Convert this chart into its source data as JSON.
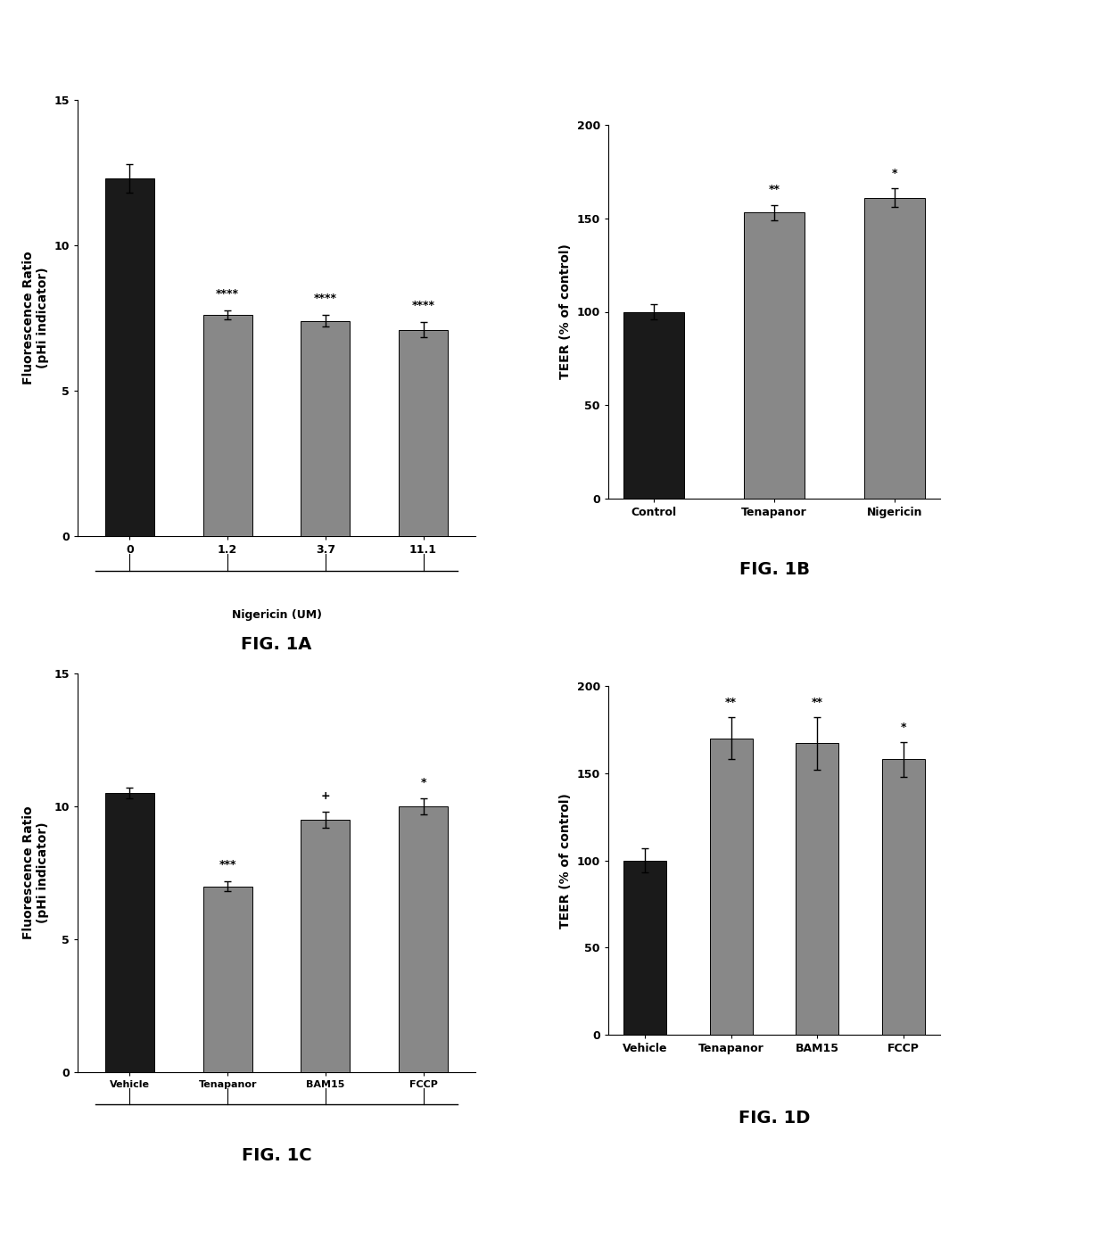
{
  "fig1a": {
    "categories": [
      "0",
      "1.2",
      "3.7",
      "11.1"
    ],
    "values": [
      12.3,
      7.6,
      7.4,
      7.1
    ],
    "errors": [
      0.5,
      0.15,
      0.2,
      0.25
    ],
    "colors": [
      "dark",
      "gray",
      "gray",
      "gray"
    ],
    "ylabel": "Fluorescence Ratio\n(pHi indicator)",
    "xlabel_bracket": "Nigericin (UM)",
    "ylim": [
      0,
      15
    ],
    "yticks": [
      0,
      5,
      10,
      15
    ],
    "significance": [
      "",
      "****",
      "****",
      "****"
    ],
    "label": "FIG. 1A"
  },
  "fig1b": {
    "categories": [
      "Control",
      "Tenapanor",
      "Nigericin"
    ],
    "values": [
      100,
      153,
      161
    ],
    "errors": [
      4,
      4,
      5
    ],
    "colors": [
      "dark",
      "gray",
      "gray"
    ],
    "ylabel": "TEER (% of control)",
    "ylim": [
      0,
      200
    ],
    "yticks": [
      0,
      50,
      100,
      150,
      200
    ],
    "significance": [
      "",
      "**",
      "*"
    ],
    "label": "FIG. 1B"
  },
  "fig1c": {
    "categories": [
      "Vehicle",
      "Tenapanor",
      "BAM15",
      "FCCP"
    ],
    "values": [
      10.5,
      7.0,
      9.5,
      10.0
    ],
    "errors": [
      0.2,
      0.2,
      0.3,
      0.3
    ],
    "colors": [
      "dark",
      "gray",
      "gray",
      "gray"
    ],
    "ylabel": "Fluorescence Ratio\n(pHi indicator)",
    "xlabel_bracket": "Vehicle  Tenapanor  BAM15    FCCP",
    "ylim": [
      0,
      15
    ],
    "yticks": [
      0,
      5,
      10,
      15
    ],
    "significance": [
      "",
      "***",
      "+",
      "*"
    ],
    "label": "FIG. 1C"
  },
  "fig1d": {
    "categories": [
      "Vehicle",
      "Tenapanor",
      "BAM15",
      "FCCP"
    ],
    "values": [
      100,
      170,
      167,
      158
    ],
    "errors": [
      7,
      12,
      15,
      10
    ],
    "colors": [
      "dark",
      "gray",
      "gray",
      "gray"
    ],
    "ylabel": "TEER (% of control)",
    "ylim": [
      0,
      200
    ],
    "yticks": [
      0,
      50,
      100,
      150,
      200
    ],
    "significance": [
      "",
      "**",
      "**",
      "*"
    ],
    "label": "FIG. 1D"
  },
  "background_color": "#ffffff",
  "dark_color": "#1a1a1a",
  "gray_color": "#888888",
  "bar_width": 0.5,
  "capsize": 3,
  "fontsize_ylabel": 10,
  "fontsize_tick": 9,
  "fontsize_sig": 9,
  "fontsize_fig_label": 14
}
